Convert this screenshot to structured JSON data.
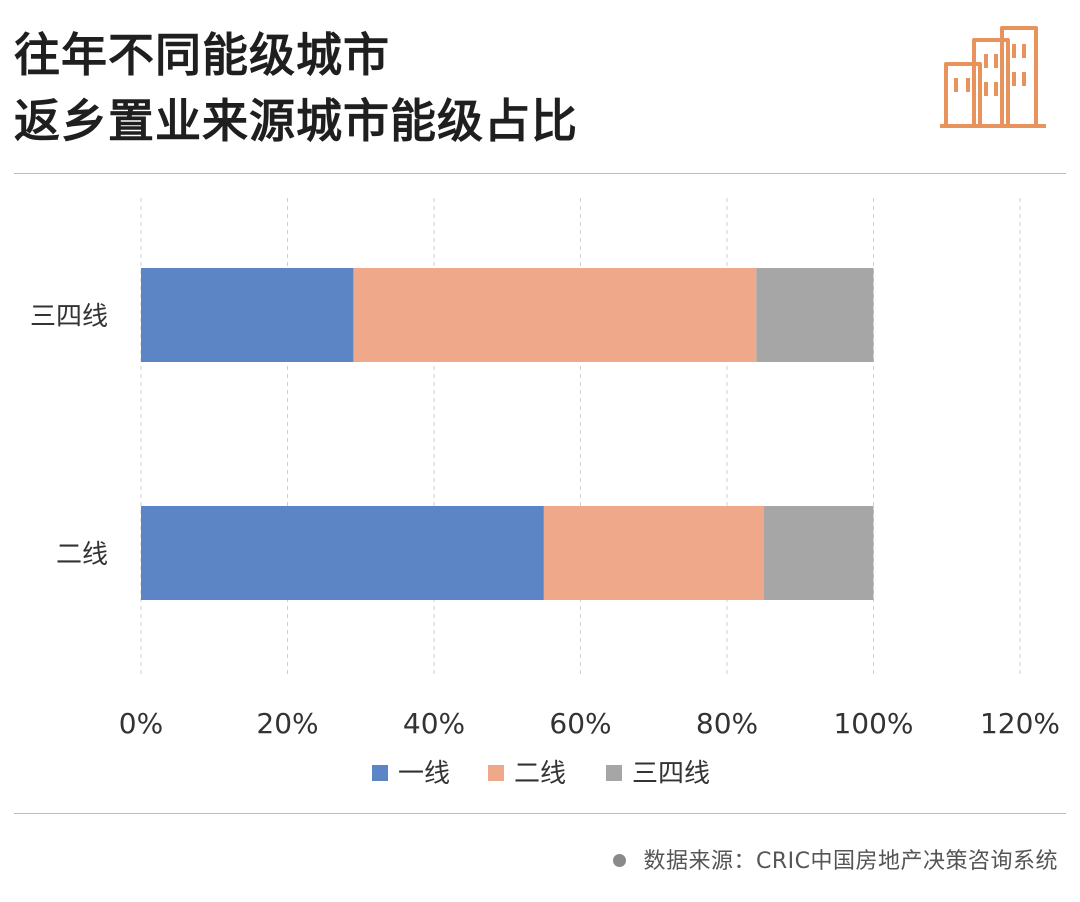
{
  "header": {
    "title_line1": "往年不同能级城市",
    "title_line2": "返乡置业来源城市能级占比",
    "logo_icon": "city-buildings-icon"
  },
  "colors": {
    "series1": "#5b85c4",
    "series2": "#efa98a",
    "series3": "#a6a6a6",
    "accent": "#e8925c"
  },
  "chart_data": {
    "type": "bar",
    "orientation": "horizontal",
    "stacked": true,
    "categories": [
      "三四线",
      "二线"
    ],
    "series": [
      {
        "name": "一线",
        "values": [
          29,
          55
        ]
      },
      {
        "name": "二线",
        "values": [
          55,
          30
        ]
      },
      {
        "name": "三四线",
        "values": [
          16,
          15
        ]
      }
    ],
    "xlim": [
      0,
      120
    ],
    "xticks": [
      "0%",
      "20%",
      "40%",
      "60%",
      "80%",
      "100%",
      "120%"
    ],
    "grid": "vertical dashed",
    "legend": "bottom"
  },
  "footer": {
    "source": "数据来源：CRIC中国房地产决策咨询系统"
  }
}
